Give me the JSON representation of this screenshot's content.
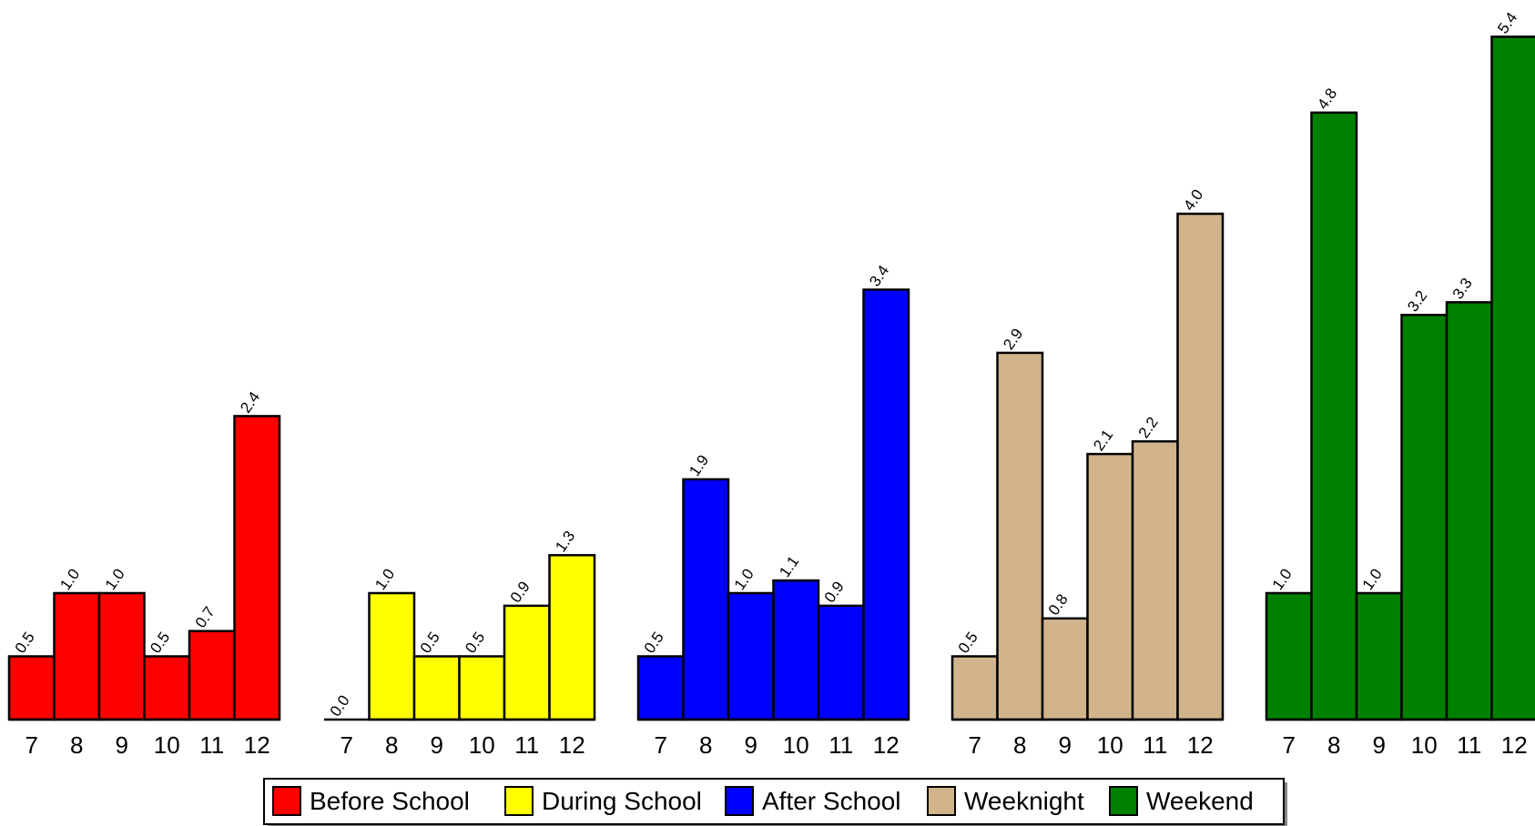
{
  "chart_data": {
    "type": "bar",
    "categories": [
      "7",
      "8",
      "9",
      "10",
      "11",
      "12"
    ],
    "series": [
      {
        "name": "Before School",
        "color": "#ff0000",
        "values": [
          0.5,
          1.0,
          1.0,
          0.5,
          0.7,
          2.4
        ],
        "labels": [
          "0.5",
          "1.0",
          "1.0",
          "0.5",
          "0.7",
          "2.4"
        ]
      },
      {
        "name": "During School",
        "color": "#ffff00",
        "values": [
          0.0,
          1.0,
          0.5,
          0.5,
          0.9,
          1.3
        ],
        "labels": [
          "0.0",
          "1.0",
          "0.5",
          "0.5",
          "0.9",
          "1.3"
        ]
      },
      {
        "name": "After School",
        "color": "#0000ff",
        "values": [
          0.5,
          1.9,
          1.0,
          1.1,
          0.9,
          3.4
        ],
        "labels": [
          "0.5",
          "1.9",
          "1.0",
          "1.1",
          "0.9",
          "3.4"
        ]
      },
      {
        "name": "Weeknight",
        "color": "#d2b48c",
        "values": [
          0.5,
          2.9,
          0.8,
          2.1,
          2.2,
          4.0
        ],
        "labels": [
          "0.5",
          "2.9",
          "0.8",
          "2.1",
          "2.2",
          "4.0"
        ]
      },
      {
        "name": "Weekend",
        "color": "#008000",
        "values": [
          1.0,
          4.8,
          1.0,
          3.2,
          3.3,
          5.4
        ],
        "labels": [
          "1.0",
          "4.8",
          "1.0",
          "3.2",
          "3.3",
          "5.4"
        ]
      }
    ],
    "layout": "small-multiples",
    "legend_position": "bottom",
    "grid": false,
    "ylim": [
      0,
      5.4
    ]
  }
}
